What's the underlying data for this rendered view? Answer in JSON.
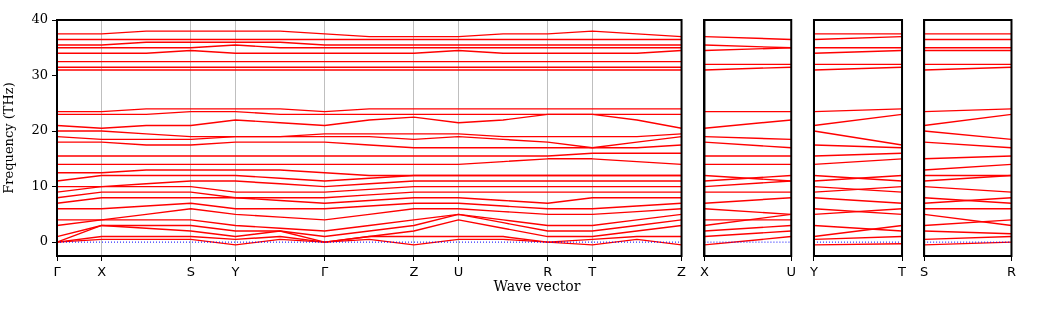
{
  "chart_data": [
    {
      "type": "line",
      "xlabel": "Wave vector",
      "ylabel": "Frequency (THz)",
      "categories": [
        "Γ",
        "X",
        null,
        "S",
        "Y",
        null,
        "Γ",
        null,
        "Z",
        "U",
        null,
        "R",
        "T",
        null,
        "Z"
      ],
      "ylim": [
        -2.5,
        40
      ],
      "yticks": [
        0,
        10,
        20,
        30,
        40
      ],
      "grid": "x",
      "ref_lines": [
        {
          "axis": "y",
          "value": 0,
          "color": "#0000ff",
          "line_style": "dotted"
        }
      ],
      "series": [
        {
          "color": "#ff0000",
          "values": [
            0,
            0.5,
            0.5,
            0.5,
            -0.5,
            0.5,
            0,
            0.5,
            -0.5,
            0.5,
            0.5,
            0,
            -0.5,
            0.5,
            -0.5
          ]
        },
        {
          "color": "#ff0000",
          "values": [
            0,
            1,
            1,
            1,
            0.5,
            1,
            0,
            1,
            1,
            1,
            1,
            0,
            0.5,
            1,
            1
          ]
        },
        {
          "color": "#ff0000",
          "values": [
            0,
            3,
            2.5,
            2,
            1,
            2,
            0,
            1,
            2,
            4,
            2.5,
            1,
            1,
            2,
            3
          ]
        },
        {
          "color": "#ff0000",
          "values": [
            1,
            3,
            3,
            3,
            2,
            2,
            1,
            2,
            3,
            5,
            3.5,
            2,
            2,
            3,
            4
          ]
        },
        {
          "color": "#ff0000",
          "values": [
            3,
            4,
            4,
            4,
            3,
            2.5,
            2,
            3,
            4,
            5,
            4,
            3,
            3,
            4,
            5
          ]
        },
        {
          "color": "#ff0000",
          "values": [
            4,
            4,
            5,
            6,
            5,
            4.5,
            4,
            5,
            6,
            6,
            5.5,
            5,
            5,
            5.5,
            6
          ]
        },
        {
          "color": "#ff0000",
          "values": [
            6,
            6,
            6.5,
            7,
            6,
            6,
            6,
            6.5,
            7,
            7,
            6.5,
            6,
            6,
            6.5,
            7
          ]
        },
        {
          "color": "#ff0000",
          "values": [
            7,
            8,
            8,
            8,
            8,
            7.5,
            7,
            7.5,
            8,
            8,
            7.5,
            7,
            8,
            8,
            8
          ]
        },
        {
          "color": "#ff0000",
          "values": [
            8,
            9,
            9,
            9,
            8,
            8,
            8,
            8.5,
            9,
            9,
            9,
            9,
            9,
            9,
            9
          ]
        },
        {
          "color": "#ff0000",
          "values": [
            9,
            10,
            10,
            10,
            9,
            9,
            9,
            9.5,
            10,
            10,
            10,
            10,
            10,
            10,
            10
          ]
        },
        {
          "color": "#ff0000",
          "values": [
            10,
            10,
            10.5,
            11,
            11,
            10.5,
            10,
            10.5,
            11,
            11,
            11,
            11,
            11,
            11,
            11
          ]
        },
        {
          "color": "#ff0000",
          "values": [
            11,
            12,
            12,
            12,
            12,
            11.5,
            11,
            11.5,
            12,
            12,
            12,
            12,
            12,
            12,
            12
          ]
        },
        {
          "color": "#ff0000",
          "values": [
            12.5,
            12.5,
            13,
            13,
            13,
            13,
            12.5,
            12,
            12,
            12,
            12,
            12,
            12,
            12,
            12
          ]
        },
        {
          "color": "#ff0000",
          "values": [
            14,
            14,
            14,
            14,
            14,
            14,
            14,
            14,
            14,
            14,
            14.5,
            15,
            15,
            14.5,
            14
          ]
        },
        {
          "color": "#ff0000",
          "values": [
            15.5,
            15.5,
            15.5,
            15.5,
            15.5,
            15.5,
            15.5,
            15.5,
            15.5,
            15.5,
            15.5,
            15.5,
            16,
            16,
            16
          ]
        },
        {
          "color": "#ff0000",
          "values": [
            18,
            18,
            17.5,
            17.5,
            18,
            18,
            18,
            17.5,
            17,
            17,
            17,
            17,
            17,
            17,
            17.5
          ]
        },
        {
          "color": "#ff0000",
          "values": [
            19,
            18.5,
            18.5,
            18.5,
            19,
            19,
            19,
            19,
            18.5,
            19,
            18.5,
            18,
            17,
            18,
            19
          ]
        },
        {
          "color": "#ff0000",
          "values": [
            20,
            20,
            19.5,
            19,
            19,
            19,
            19.5,
            19.5,
            19.5,
            19.5,
            19,
            19,
            19,
            19,
            19.5
          ]
        },
        {
          "color": "#ff0000",
          "values": [
            21,
            20.5,
            21,
            21,
            22,
            21.5,
            21,
            22,
            22.5,
            21.5,
            22,
            23,
            23,
            22,
            20.5
          ]
        },
        {
          "color": "#ff0000",
          "values": [
            23,
            23,
            23,
            23.5,
            23.5,
            23,
            23,
            23,
            23,
            23,
            23,
            23,
            23,
            23,
            23
          ]
        },
        {
          "color": "#ff0000",
          "values": [
            23.5,
            23.5,
            24,
            24,
            24,
            24,
            23.5,
            24,
            24,
            24,
            24,
            24,
            24,
            24,
            24
          ]
        },
        {
          "color": "#ff0000",
          "values": [
            31,
            31,
            31,
            31,
            31,
            31,
            31,
            31,
            31,
            31,
            31,
            31,
            31,
            31,
            31
          ]
        },
        {
          "color": "#ff0000",
          "values": [
            31.5,
            31.5,
            31.5,
            31.5,
            31.5,
            31.5,
            31.5,
            31.5,
            31.5,
            31.5,
            31.5,
            31.5,
            31.5,
            31.5,
            31.5
          ]
        },
        {
          "color": "#ff0000",
          "values": [
            32.5,
            32.5,
            32.5,
            32.5,
            32.5,
            32.5,
            32.5,
            32.5,
            32.5,
            32.5,
            32.5,
            32.5,
            32.5,
            32.5,
            32.5
          ]
        },
        {
          "color": "#ff0000",
          "values": [
            34,
            34,
            34,
            34.5,
            34,
            34,
            34,
            34,
            34,
            34.5,
            34,
            34,
            34,
            34,
            34.5
          ]
        },
        {
          "color": "#ff0000",
          "values": [
            35,
            35,
            35,
            35,
            35.5,
            35,
            35,
            35,
            35,
            35,
            35,
            35,
            35,
            35,
            35
          ]
        },
        {
          "color": "#ff0000",
          "values": [
            35.5,
            35.5,
            36,
            36,
            36,
            36,
            35.5,
            35.5,
            35.5,
            35.5,
            35.5,
            35.5,
            35.5,
            35.5,
            35.5
          ]
        },
        {
          "color": "#ff0000",
          "values": [
            36.5,
            36.5,
            36.5,
            36.5,
            36.5,
            36.5,
            36.5,
            36.5,
            36.5,
            36.5,
            36.5,
            36.5,
            36.5,
            36.5,
            36.5
          ]
        },
        {
          "color": "#ff0000",
          "values": [
            37.5,
            37.5,
            38,
            38,
            38,
            38,
            37.5,
            37,
            37,
            37,
            37.5,
            37.5,
            38,
            37.5,
            37
          ]
        }
      ]
    },
    {
      "type": "line",
      "categories": [
        "X",
        "U"
      ],
      "ylim": [
        -2.5,
        40
      ],
      "tick_labels": "x",
      "ref_lines": [
        {
          "axis": "y",
          "value": 0,
          "color": "#0000ff",
          "line_style": "dotted"
        }
      ],
      "series": [
        {
          "color": "#ff0000",
          "values": [
            -0.5,
            1
          ]
        },
        {
          "color": "#ff0000",
          "values": [
            1,
            2
          ]
        },
        {
          "color": "#ff0000",
          "values": [
            2,
            3
          ]
        },
        {
          "color": "#ff0000",
          "values": [
            3,
            5
          ]
        },
        {
          "color": "#ff0000",
          "values": [
            4,
            4
          ]
        },
        {
          "color": "#ff0000",
          "values": [
            6,
            5
          ]
        },
        {
          "color": "#ff0000",
          "values": [
            7,
            8
          ]
        },
        {
          "color": "#ff0000",
          "values": [
            9,
            9
          ]
        },
        {
          "color": "#ff0000",
          "values": [
            10,
            11
          ]
        },
        {
          "color": "#ff0000",
          "values": [
            11,
            12
          ]
        },
        {
          "color": "#ff0000",
          "values": [
            12,
            11
          ]
        },
        {
          "color": "#ff0000",
          "values": [
            14,
            14
          ]
        },
        {
          "color": "#ff0000",
          "values": [
            15.5,
            15.5
          ]
        },
        {
          "color": "#ff0000",
          "values": [
            18,
            17
          ]
        },
        {
          "color": "#ff0000",
          "values": [
            19,
            18.5
          ]
        },
        {
          "color": "#ff0000",
          "values": [
            20.5,
            22
          ]
        },
        {
          "color": "#ff0000",
          "values": [
            23.5,
            23.5
          ]
        },
        {
          "color": "#ff0000",
          "values": [
            31,
            31.5
          ]
        },
        {
          "color": "#ff0000",
          "values": [
            32,
            32
          ]
        },
        {
          "color": "#ff0000",
          "values": [
            34.5,
            35
          ]
        },
        {
          "color": "#ff0000",
          "values": [
            35.5,
            35
          ]
        },
        {
          "color": "#ff0000",
          "values": [
            37,
            36.5
          ]
        }
      ]
    },
    {
      "type": "line",
      "categories": [
        "Y",
        "T"
      ],
      "ylim": [
        -2.5,
        40
      ],
      "tick_labels": "x",
      "ref_lines": [
        {
          "axis": "y",
          "value": 0,
          "color": "#0000ff",
          "line_style": "dotted"
        }
      ],
      "series": [
        {
          "color": "#ff0000",
          "values": [
            -0.5,
            -0.3
          ]
        },
        {
          "color": "#ff0000",
          "values": [
            0.5,
            1
          ]
        },
        {
          "color": "#ff0000",
          "values": [
            1,
            3
          ]
        },
        {
          "color": "#ff0000",
          "values": [
            3,
            2
          ]
        },
        {
          "color": "#ff0000",
          "values": [
            5,
            6
          ]
        },
        {
          "color": "#ff0000",
          "values": [
            6,
            5
          ]
        },
        {
          "color": "#ff0000",
          "values": [
            8,
            7
          ]
        },
        {
          "color": "#ff0000",
          "values": [
            9,
            10
          ]
        },
        {
          "color": "#ff0000",
          "values": [
            10,
            9
          ]
        },
        {
          "color": "#ff0000",
          "values": [
            11,
            12
          ]
        },
        {
          "color": "#ff0000",
          "values": [
            12,
            11
          ]
        },
        {
          "color": "#ff0000",
          "values": [
            14,
            15
          ]
        },
        {
          "color": "#ff0000",
          "values": [
            15.5,
            16
          ]
        },
        {
          "color": "#ff0000",
          "values": [
            17.5,
            17
          ]
        },
        {
          "color": "#ff0000",
          "values": [
            20,
            17.5
          ]
        },
        {
          "color": "#ff0000",
          "values": [
            21,
            23
          ]
        },
        {
          "color": "#ff0000",
          "values": [
            23.5,
            24
          ]
        },
        {
          "color": "#ff0000",
          "values": [
            31,
            31.5
          ]
        },
        {
          "color": "#ff0000",
          "values": [
            32,
            32
          ]
        },
        {
          "color": "#ff0000",
          "values": [
            34,
            34.5
          ]
        },
        {
          "color": "#ff0000",
          "values": [
            35,
            35
          ]
        },
        {
          "color": "#ff0000",
          "values": [
            36.5,
            37
          ]
        },
        {
          "color": "#ff0000",
          "values": [
            37.5,
            37.5
          ]
        }
      ]
    },
    {
      "type": "line",
      "categories": [
        "S",
        "R"
      ],
      "ylim": [
        -2.5,
        40
      ],
      "tick_labels": "x",
      "ref_lines": [
        {
          "axis": "y",
          "value": 0,
          "color": "#0000ff",
          "line_style": "dotted"
        }
      ],
      "series": [
        {
          "color": "#ff0000",
          "values": [
            -0.5,
            0
          ]
        },
        {
          "color": "#ff0000",
          "values": [
            0.5,
            1
          ]
        },
        {
          "color": "#ff0000",
          "values": [
            2,
            1.5
          ]
        },
        {
          "color": "#ff0000",
          "values": [
            3,
            4
          ]
        },
        {
          "color": "#ff0000",
          "values": [
            5,
            3
          ]
        },
        {
          "color": "#ff0000",
          "values": [
            6,
            6
          ]
        },
        {
          "color": "#ff0000",
          "values": [
            7,
            8
          ]
        },
        {
          "color": "#ff0000",
          "values": [
            8,
            7
          ]
        },
        {
          "color": "#ff0000",
          "values": [
            10,
            9
          ]
        },
        {
          "color": "#ff0000",
          "values": [
            11,
            12
          ]
        },
        {
          "color": "#ff0000",
          "values": [
            12,
            12
          ]
        },
        {
          "color": "#ff0000",
          "values": [
            13,
            14
          ]
        },
        {
          "color": "#ff0000",
          "values": [
            15,
            15.5
          ]
        },
        {
          "color": "#ff0000",
          "values": [
            18,
            17
          ]
        },
        {
          "color": "#ff0000",
          "values": [
            20,
            18.5
          ]
        },
        {
          "color": "#ff0000",
          "values": [
            21,
            23
          ]
        },
        {
          "color": "#ff0000",
          "values": [
            23.5,
            24
          ]
        },
        {
          "color": "#ff0000",
          "values": [
            31,
            31.5
          ]
        },
        {
          "color": "#ff0000",
          "values": [
            32,
            32
          ]
        },
        {
          "color": "#ff0000",
          "values": [
            34.5,
            34.5
          ]
        },
        {
          "color": "#ff0000",
          "values": [
            35,
            35
          ]
        },
        {
          "color": "#ff0000",
          "values": [
            36.5,
            36.5
          ]
        },
        {
          "color": "#ff0000",
          "values": [
            37.5,
            37.5
          ]
        }
      ]
    }
  ]
}
